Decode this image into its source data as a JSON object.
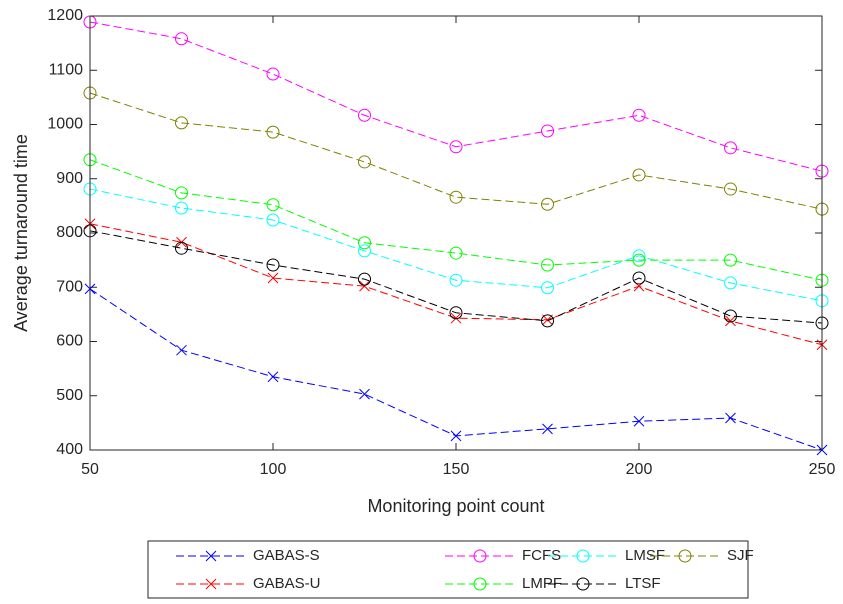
{
  "chart_data": {
    "type": "line",
    "xlabel": "Monitoring point count",
    "ylabel": "Average turnaround time",
    "x": [
      50,
      75,
      100,
      125,
      150,
      175,
      200,
      225,
      250
    ],
    "xlim": [
      50,
      250
    ],
    "xticks": [
      50,
      100,
      150,
      200,
      250
    ],
    "ylim": [
      400,
      1200
    ],
    "yticks": [
      400,
      500,
      600,
      700,
      800,
      900,
      1000,
      1100,
      1200
    ],
    "series": [
      {
        "name": "GABAS-S",
        "color": "#0000ff",
        "marker": "x",
        "values": [
          697,
          584,
          535,
          503,
          426,
          439,
          453,
          459,
          400
        ]
      },
      {
        "name": "FCFS",
        "color": "#ff00ff",
        "marker": "o",
        "values": [
          1189,
          1158,
          1093,
          1017,
          959,
          988,
          1017,
          957,
          914
        ]
      },
      {
        "name": "LMSF",
        "color": "#00ffff",
        "marker": "o",
        "values": [
          881,
          846,
          824,
          767,
          713,
          699,
          758,
          708,
          675
        ]
      },
      {
        "name": "SJF",
        "color": "#808000",
        "marker": "o",
        "values": [
          1058,
          1003,
          986,
          931,
          866,
          853,
          907,
          881,
          844
        ]
      },
      {
        "name": "GABAS-U",
        "color": "#ff0000",
        "marker": "x",
        "values": [
          817,
          783,
          717,
          702,
          643,
          640,
          702,
          638,
          594
        ]
      },
      {
        "name": "LMPF",
        "color": "#00ff00",
        "marker": "o",
        "values": [
          935,
          874,
          852,
          782,
          763,
          741,
          750,
          750,
          713
        ]
      },
      {
        "name": "LTSF",
        "color": "#000000",
        "marker": "o",
        "values": [
          804,
          772,
          741,
          715,
          653,
          638,
          717,
          647,
          634
        ]
      }
    ]
  }
}
